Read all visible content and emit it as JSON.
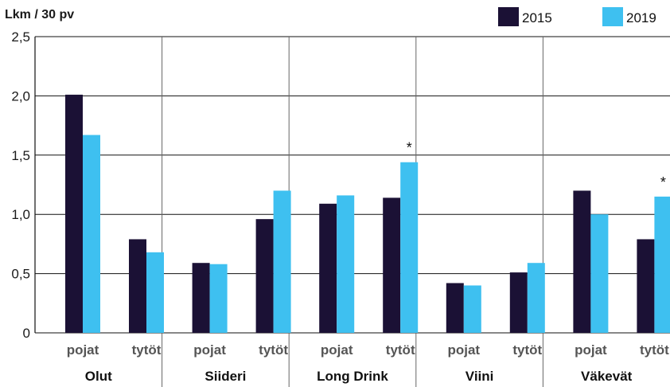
{
  "chart_data": {
    "type": "bar",
    "ylabel": "Lkm / 30 pv",
    "ylim": [
      0,
      2.5
    ],
    "yticks": [
      "0",
      "0,5",
      "1,0",
      "1,5",
      "2,0",
      "2,5"
    ],
    "grid": "horizontal",
    "legend_position": "top-right",
    "groups": [
      "Olut",
      "Siideri",
      "Long Drink",
      "Viini",
      "Väkevät"
    ],
    "subcategories": [
      "pojat",
      "tytöt"
    ],
    "series": [
      {
        "name": "2015",
        "color": "#1b1135",
        "values": [
          [
            2.01,
            0.79
          ],
          [
            0.59,
            0.96
          ],
          [
            1.09,
            1.14
          ],
          [
            0.42,
            0.51
          ],
          [
            1.2,
            0.79
          ]
        ]
      },
      {
        "name": "2019",
        "color": "#3ec0f0",
        "values": [
          [
            1.67,
            0.68
          ],
          [
            0.58,
            1.2
          ],
          [
            1.16,
            1.44
          ],
          [
            0.4,
            0.59
          ],
          [
            1.0,
            1.15
          ]
        ]
      }
    ],
    "annotations": [
      {
        "group": "Long Drink",
        "subcategory": "tytöt",
        "text": "*"
      },
      {
        "group": "Väkevät",
        "subcategory": "tytöt",
        "text": "*"
      }
    ]
  }
}
